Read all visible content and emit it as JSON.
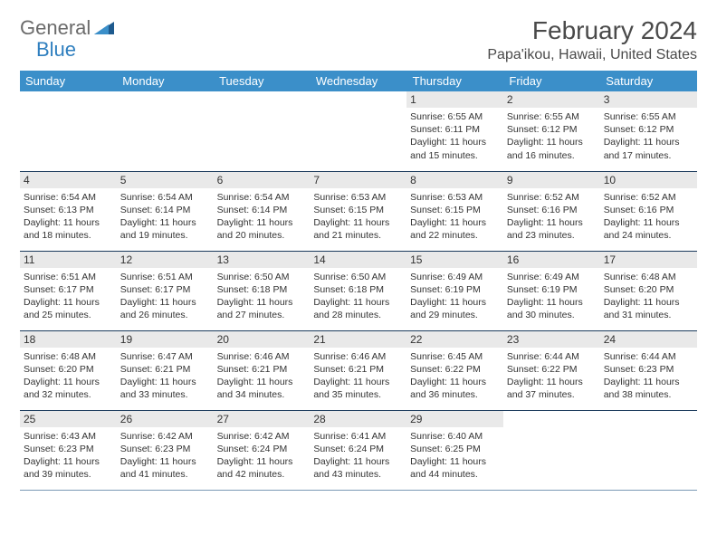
{
  "brand": {
    "name1": "General",
    "name2": "Blue"
  },
  "title": "February 2024",
  "location": "Papa'ikou, Hawaii, United States",
  "colors": {
    "header_bg": "#3b8fc9",
    "header_text": "#ffffff",
    "daynum_bg": "#e9e9e9",
    "rule": "#1b3a5c",
    "logo_gray": "#6b6b6b",
    "logo_blue": "#2f7fbf",
    "text": "#333333",
    "background": "#ffffff"
  },
  "day_headers": [
    "Sunday",
    "Monday",
    "Tuesday",
    "Wednesday",
    "Thursday",
    "Friday",
    "Saturday"
  ],
  "weeks": [
    [
      null,
      null,
      null,
      null,
      {
        "n": "1",
        "sr": "6:55 AM",
        "ss": "6:11 PM",
        "dh": "11",
        "dm": "15"
      },
      {
        "n": "2",
        "sr": "6:55 AM",
        "ss": "6:12 PM",
        "dh": "11",
        "dm": "16"
      },
      {
        "n": "3",
        "sr": "6:55 AM",
        "ss": "6:12 PM",
        "dh": "11",
        "dm": "17"
      }
    ],
    [
      {
        "n": "4",
        "sr": "6:54 AM",
        "ss": "6:13 PM",
        "dh": "11",
        "dm": "18"
      },
      {
        "n": "5",
        "sr": "6:54 AM",
        "ss": "6:14 PM",
        "dh": "11",
        "dm": "19"
      },
      {
        "n": "6",
        "sr": "6:54 AM",
        "ss": "6:14 PM",
        "dh": "11",
        "dm": "20"
      },
      {
        "n": "7",
        "sr": "6:53 AM",
        "ss": "6:15 PM",
        "dh": "11",
        "dm": "21"
      },
      {
        "n": "8",
        "sr": "6:53 AM",
        "ss": "6:15 PM",
        "dh": "11",
        "dm": "22"
      },
      {
        "n": "9",
        "sr": "6:52 AM",
        "ss": "6:16 PM",
        "dh": "11",
        "dm": "23"
      },
      {
        "n": "10",
        "sr": "6:52 AM",
        "ss": "6:16 PM",
        "dh": "11",
        "dm": "24"
      }
    ],
    [
      {
        "n": "11",
        "sr": "6:51 AM",
        "ss": "6:17 PM",
        "dh": "11",
        "dm": "25"
      },
      {
        "n": "12",
        "sr": "6:51 AM",
        "ss": "6:17 PM",
        "dh": "11",
        "dm": "26"
      },
      {
        "n": "13",
        "sr": "6:50 AM",
        "ss": "6:18 PM",
        "dh": "11",
        "dm": "27"
      },
      {
        "n": "14",
        "sr": "6:50 AM",
        "ss": "6:18 PM",
        "dh": "11",
        "dm": "28"
      },
      {
        "n": "15",
        "sr": "6:49 AM",
        "ss": "6:19 PM",
        "dh": "11",
        "dm": "29"
      },
      {
        "n": "16",
        "sr": "6:49 AM",
        "ss": "6:19 PM",
        "dh": "11",
        "dm": "30"
      },
      {
        "n": "17",
        "sr": "6:48 AM",
        "ss": "6:20 PM",
        "dh": "11",
        "dm": "31"
      }
    ],
    [
      {
        "n": "18",
        "sr": "6:48 AM",
        "ss": "6:20 PM",
        "dh": "11",
        "dm": "32"
      },
      {
        "n": "19",
        "sr": "6:47 AM",
        "ss": "6:21 PM",
        "dh": "11",
        "dm": "33"
      },
      {
        "n": "20",
        "sr": "6:46 AM",
        "ss": "6:21 PM",
        "dh": "11",
        "dm": "34"
      },
      {
        "n": "21",
        "sr": "6:46 AM",
        "ss": "6:21 PM",
        "dh": "11",
        "dm": "35"
      },
      {
        "n": "22",
        "sr": "6:45 AM",
        "ss": "6:22 PM",
        "dh": "11",
        "dm": "36"
      },
      {
        "n": "23",
        "sr": "6:44 AM",
        "ss": "6:22 PM",
        "dh": "11",
        "dm": "37"
      },
      {
        "n": "24",
        "sr": "6:44 AM",
        "ss": "6:23 PM",
        "dh": "11",
        "dm": "38"
      }
    ],
    [
      {
        "n": "25",
        "sr": "6:43 AM",
        "ss": "6:23 PM",
        "dh": "11",
        "dm": "39"
      },
      {
        "n": "26",
        "sr": "6:42 AM",
        "ss": "6:23 PM",
        "dh": "11",
        "dm": "41"
      },
      {
        "n": "27",
        "sr": "6:42 AM",
        "ss": "6:24 PM",
        "dh": "11",
        "dm": "42"
      },
      {
        "n": "28",
        "sr": "6:41 AM",
        "ss": "6:24 PM",
        "dh": "11",
        "dm": "43"
      },
      {
        "n": "29",
        "sr": "6:40 AM",
        "ss": "6:25 PM",
        "dh": "11",
        "dm": "44"
      },
      null,
      null
    ]
  ],
  "labels": {
    "sunrise": "Sunrise:",
    "sunset": "Sunset:",
    "daylight_prefix": "Daylight:",
    "hours_word": "hours",
    "and_word": "and",
    "minutes_word": "minutes."
  }
}
